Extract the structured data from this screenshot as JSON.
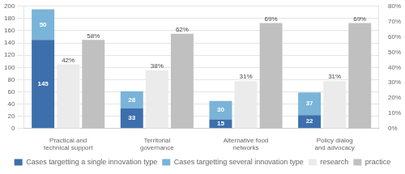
{
  "chart_data": {
    "type": "bar",
    "categories": [
      "Practical and technical support",
      "Territorial governance",
      "Alternative food networks",
      "Policy dialog and advocacy"
    ],
    "series": [
      {
        "name": "Cases targetting a single innovation type",
        "color": "#3d6fad",
        "values": [
          145,
          33,
          15,
          22
        ]
      },
      {
        "name": "Cases targetting several innovation type",
        "color": "#7ab4d8",
        "values": [
          50,
          28,
          30,
          37
        ]
      },
      {
        "name": "research",
        "color": "#ebebeb",
        "axis": "y2",
        "values": [
          0.42,
          0.38,
          0.31,
          0.31
        ],
        "value_labels": [
          "42%",
          "38%",
          "31%",
          "31%"
        ]
      },
      {
        "name": "practice",
        "color": "#c0c0c0",
        "axis": "y2",
        "values": [
          0.58,
          0.62,
          0.69,
          0.69
        ],
        "value_labels": [
          "58%",
          "62%",
          "69%",
          "69%"
        ]
      }
    ],
    "stacked": true,
    "ylim": [
      0,
      200
    ],
    "yticks": [
      0,
      20,
      40,
      60,
      80,
      100,
      120,
      140,
      160,
      180,
      200
    ],
    "y2lim": [
      0,
      0.8
    ],
    "y2ticks": [
      {
        "value": 0.0,
        "label": "0%"
      },
      {
        "value": 0.1,
        "label": "10%"
      },
      {
        "value": 0.2,
        "label": "20%"
      },
      {
        "value": 0.3,
        "label": "30%"
      },
      {
        "value": 0.4,
        "label": "40%"
      },
      {
        "value": 0.5,
        "label": "50%"
      },
      {
        "value": 0.6,
        "label": "60%"
      },
      {
        "value": 0.7,
        "label": "70%"
      },
      {
        "value": 0.8,
        "label": "80%"
      }
    ],
    "grid": true,
    "data_labels": true,
    "legend": "bottom"
  }
}
